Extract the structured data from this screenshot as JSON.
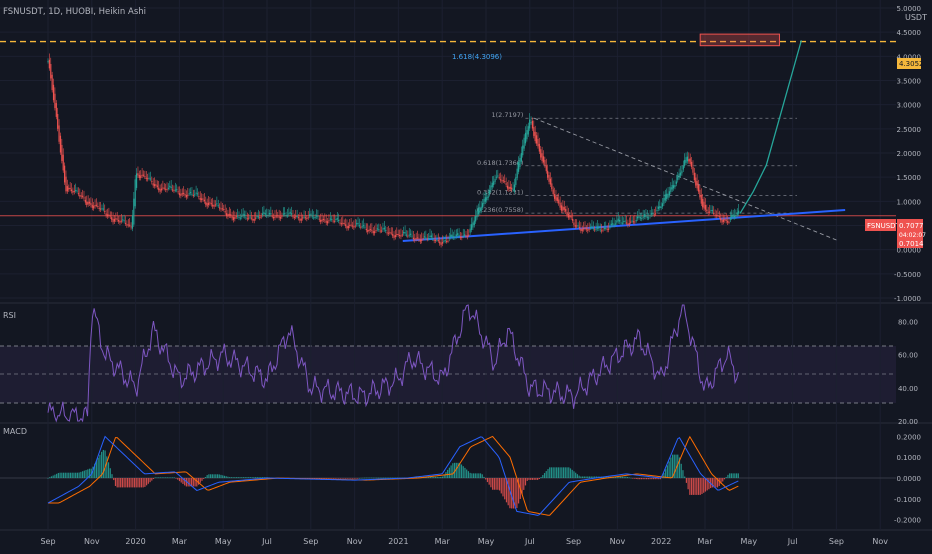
{
  "colors": {
    "background": "#131722",
    "grid": "#1c2030",
    "text": "#b2b5be",
    "up": "#26a69a",
    "down": "#ef5350",
    "trendline": "#2962ff",
    "target_line": "#f5b73b",
    "rsi": "#7e57c2",
    "macd": "#2962ff",
    "signal": "#ff6d00"
  },
  "header": {
    "title": "FSNUSDT, 1D, HUOBI, Heikin Ashi"
  },
  "price_axis": {
    "unit": "USDT",
    "ticks": [
      "5.0000",
      "4.5000",
      "4.0000",
      "3.5000",
      "3.0000",
      "2.5000",
      "2.0000",
      "1.5000",
      "1.0000",
      "0.5000",
      "0.0000",
      "-0.5000",
      "-1.0000"
    ],
    "target_label": "4.3052",
    "symbol_label": "FSNUSDT",
    "last_price": "0.7077",
    "countdown": "04:02:07",
    "level_label": "0.7014"
  },
  "fib": {
    "extension_label": "1.618(4.3096)",
    "levels": [
      {
        "label": "1(2.7197)",
        "value": 2.7197
      },
      {
        "label": "0.618(1.7360)",
        "value": 1.736
      },
      {
        "label": "0.382(1.1231)",
        "value": 1.1231
      },
      {
        "label": "0.236(0.7558)",
        "value": 0.7558
      }
    ]
  },
  "rsi": {
    "label": "RSI",
    "ticks": [
      "80.00",
      "60.00",
      "40.00",
      "20.00"
    ],
    "band": [
      30,
      70
    ],
    "mid": 50
  },
  "macd": {
    "label": "MACD",
    "ticks": [
      "0.2000",
      "0.1000",
      "0.0000",
      "-0.1000",
      "-0.2000"
    ]
  },
  "time_axis": {
    "labels": [
      "Sep",
      "Nov",
      "2020",
      "Mar",
      "May",
      "Jul",
      "Sep",
      "Nov",
      "2021",
      "Mar",
      "May",
      "Jul",
      "Sep",
      "Nov",
      "2022",
      "Mar",
      "May",
      "Jul",
      "Sep",
      "Nov"
    ]
  },
  "chart_data": {
    "type": "candlestick",
    "symbol": "FSNUSDT",
    "interval": "1D",
    "exchange": "HUOBI",
    "style": "Heikin Ashi",
    "ylim": [
      -1.0,
      5.0
    ],
    "months": [
      "Sep",
      "Nov",
      "2020",
      "Mar",
      "May",
      "Jul",
      "Sep",
      "Nov",
      "2021",
      "Mar",
      "May",
      "Jul",
      "Sep",
      "Nov",
      "2022",
      "Mar",
      "May",
      "Jul",
      "Sep",
      "Nov"
    ],
    "price_path": [
      [
        0,
        3.9
      ],
      [
        0.4,
        1.3
      ],
      [
        1.3,
        0.75
      ],
      [
        1.9,
        0.45
      ],
      [
        2.0,
        1.6
      ],
      [
        2.5,
        1.3
      ],
      [
        3.4,
        1.1
      ],
      [
        4.3,
        0.65
      ],
      [
        5.2,
        0.72
      ],
      [
        6.2,
        0.65
      ],
      [
        7.2,
        0.45
      ],
      [
        8.2,
        0.28
      ],
      [
        9.0,
        0.18
      ],
      [
        9.6,
        0.35
      ],
      [
        10.2,
        1.5
      ],
      [
        10.6,
        1.25
      ],
      [
        11.0,
        2.7
      ],
      [
        11.5,
        1.2
      ],
      [
        12.0,
        0.5
      ],
      [
        12.5,
        0.4
      ],
      [
        13.0,
        0.55
      ],
      [
        13.6,
        0.65
      ],
      [
        14.0,
        0.9
      ],
      [
        14.6,
        1.9
      ],
      [
        15.0,
        0.8
      ],
      [
        15.5,
        0.6
      ],
      [
        15.8,
        0.75
      ]
    ],
    "projection": [
      [
        15.8,
        0.75
      ],
      [
        16.1,
        1.2
      ],
      [
        16.4,
        1.75
      ],
      [
        17.2,
        4.33
      ]
    ],
    "trendline": [
      [
        8.1,
        0.18
      ],
      [
        18.2,
        0.82
      ]
    ],
    "descending_line": [
      [
        11.1,
        2.72
      ],
      [
        18.0,
        0.2
      ]
    ],
    "horizontal_level": 0.7014,
    "target_box": [
      4.22,
      4.46
    ],
    "target_level": 4.3052,
    "fib_levels": [
      2.7197,
      1.736,
      1.1231,
      0.7558
    ],
    "fib_extension": 4.3096,
    "rsi_ylim": [
      20,
      90
    ],
    "rsi_path": [
      [
        0,
        25
      ],
      [
        0.9,
        22
      ],
      [
        1.0,
        90
      ],
      [
        1.3,
        60
      ],
      [
        2.0,
        40
      ],
      [
        2.4,
        75
      ],
      [
        3.0,
        45
      ],
      [
        4.0,
        60
      ],
      [
        5.0,
        45
      ],
      [
        5.5,
        75
      ],
      [
        6.0,
        40
      ],
      [
        7.2,
        35
      ],
      [
        8.0,
        45
      ],
      [
        8.3,
        58
      ],
      [
        9.0,
        45
      ],
      [
        9.6,
        90
      ],
      [
        10.2,
        55
      ],
      [
        10.5,
        75
      ],
      [
        11.0,
        40
      ],
      [
        12.0,
        35
      ],
      [
        12.8,
        55
      ],
      [
        13.5,
        70
      ],
      [
        14.0,
        45
      ],
      [
        14.5,
        90
      ],
      [
        15.0,
        38
      ],
      [
        15.5,
        60
      ],
      [
        15.8,
        45
      ]
    ],
    "macd_ylim": [
      -0.24,
      0.25
    ],
    "macd_path": [
      [
        0,
        -0.12
      ],
      [
        0.7,
        -0.04
      ],
      [
        1.0,
        0.02
      ],
      [
        1.3,
        0.2
      ],
      [
        1.7,
        0.12
      ],
      [
        2.2,
        0.02
      ],
      [
        2.9,
        0.03
      ],
      [
        3.4,
        -0.06
      ],
      [
        3.9,
        -0.02
      ],
      [
        5.0,
        0.0
      ],
      [
        7.0,
        -0.01
      ],
      [
        8.2,
        0.0
      ],
      [
        9.0,
        0.02
      ],
      [
        9.4,
        0.15
      ],
      [
        9.9,
        0.2
      ],
      [
        10.3,
        0.1
      ],
      [
        10.7,
        -0.16
      ],
      [
        11.2,
        -0.18
      ],
      [
        11.9,
        -0.02
      ],
      [
        12.5,
        0.0
      ],
      [
        13.2,
        0.02
      ],
      [
        14.0,
        0.0
      ],
      [
        14.4,
        0.2
      ],
      [
        14.9,
        0.02
      ],
      [
        15.3,
        -0.06
      ],
      [
        15.8,
        -0.01
      ]
    ]
  }
}
